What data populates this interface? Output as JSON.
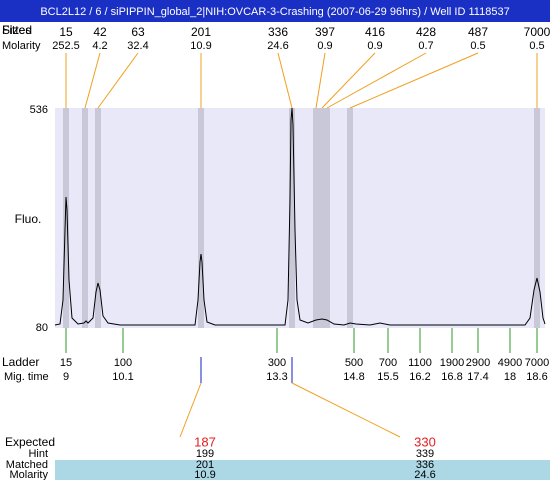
{
  "header": {
    "title": "BCL2L12 / 6 / siPIPPIN_global_2|NIH:OVCAR-3-Crashing (2007-06-29 96hrs) / Well ID 1118537"
  },
  "peaks": {
    "fitted_label": "Fitted",
    "size_label": "Sizes",
    "molarity_label": "Molarity",
    "sizes": [
      15,
      42,
      63,
      201,
      336,
      397,
      416,
      428,
      487,
      7000
    ],
    "molarity": [
      252.5,
      4.2,
      32.4,
      10.9,
      24.6,
      0.9,
      0.9,
      0.7,
      0.5,
      0.5
    ]
  },
  "axis": {
    "y_label": "Fluo.",
    "y_max": "536",
    "y_min": "80"
  },
  "ladder": {
    "label": "Ladder",
    "time_label": "Mig. time",
    "sizes": [
      15,
      100,
      300,
      500,
      700,
      1100,
      1900,
      2900,
      4900,
      7000
    ],
    "times": [
      9,
      10.1,
      13.3,
      14.8,
      15.5,
      16.2,
      16.8,
      17.4,
      18,
      18.6
    ]
  },
  "expected": {
    "label": "Expected",
    "hint_label": "Hint",
    "matched_label": "Matched",
    "molarity_label": "Molarity",
    "expected": [
      187,
      330
    ],
    "hint": [
      199,
      339
    ],
    "matched": [
      201,
      336
    ],
    "molarity": [
      10.9,
      24.6
    ]
  }
}
